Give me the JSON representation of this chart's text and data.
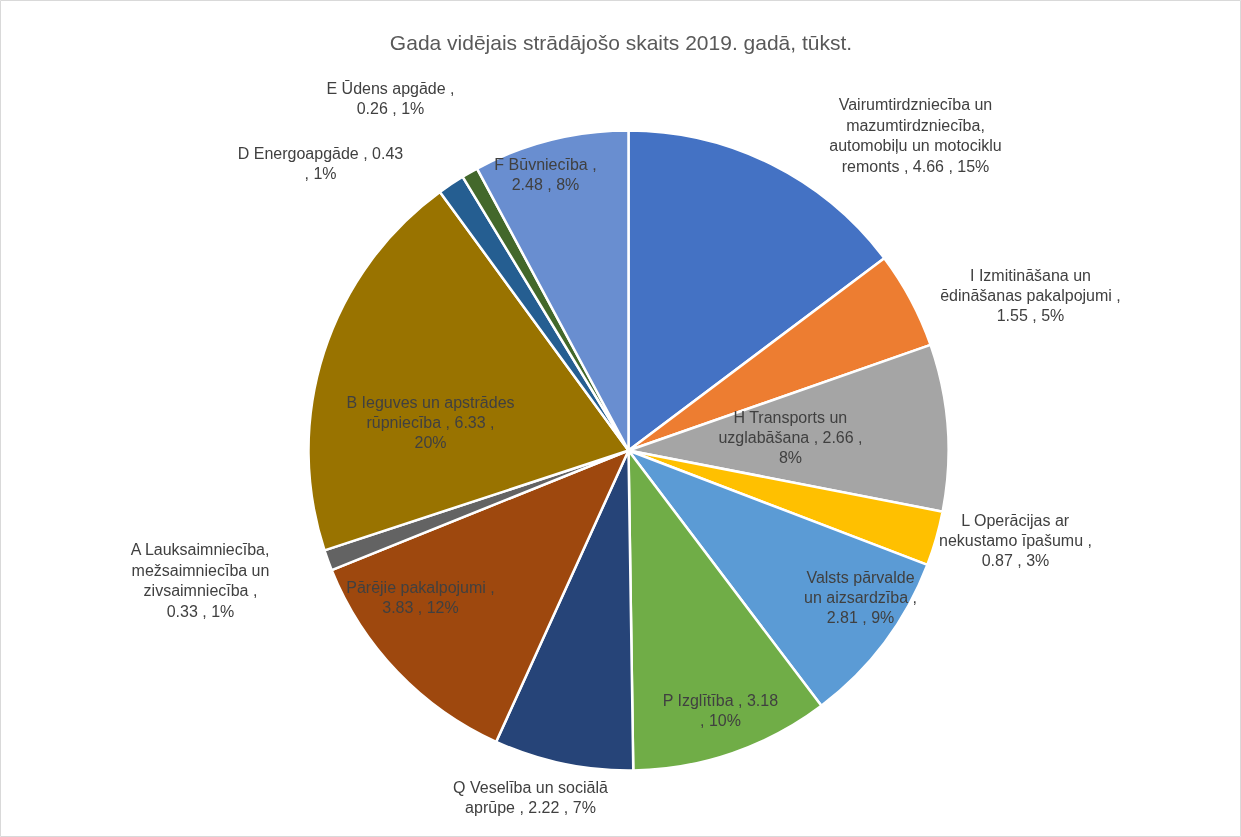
{
  "chart_data": {
    "type": "pie",
    "title": "Gada vidējais strādājošo skaits 2019. gadā, tūkst.",
    "categories": [
      "Vairumtirdzniecība un mazumtirdzniecība, automobiļu un motociklu remonts",
      "I Izmitināšana un ēdināšanas pakalpojumi",
      "H Transports un uzglabāšana",
      "L Operācijas ar nekustamo īpašumu",
      "Valsts pārvalde un aizsardzība",
      "P Izglītība",
      "Q Veselība un sociālā aprūpe",
      "Pārējie pakalpojumi",
      "A Lauksaimniecība, mežsaimniecība un zivsaimniecība",
      "B Ieguves un apstrādes rūpniecība",
      "D Energoapgāde",
      "E Ūdens apgāde",
      "F Būvniecība"
    ],
    "values": [
      4.66,
      1.55,
      2.66,
      0.87,
      2.81,
      3.18,
      2.22,
      3.83,
      0.33,
      6.33,
      0.43,
      0.26,
      2.48
    ],
    "value_labels": [
      ", 4.66 , 15%",
      ", 1.55 , 5%",
      ", 2.66 , 8%",
      ", 0.87 , 3%",
      ", 2.81 , 9%",
      ", 3.18 , 10%",
      ", 2.22 , 7%",
      ", 3.83 , 12%",
      ", 0.33 , 1%",
      ", 6.33 , 20%",
      ", 0.43 , 1%",
      ", 0.26 , 1%",
      ", 2.48 , 8%"
    ],
    "colors": [
      "#4472c4",
      "#ed7d31",
      "#a5a5a5",
      "#ffc000",
      "#5b9bd5",
      "#70ad47",
      "#264478",
      "#9e480e",
      "#636363",
      "#997300",
      "#255e91",
      "#43682b",
      "#698ed0"
    ]
  }
}
